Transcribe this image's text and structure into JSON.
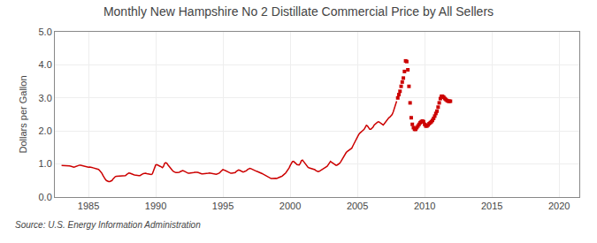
{
  "chart_data": {
    "type": "line",
    "title": "Monthly New Hampshire No 2 Distillate Commercial Price by All Sellers",
    "ylabel": "Dollars per Gallon",
    "annotations": [
      "Source: U.S. Energy Information Administration"
    ],
    "xlim": [
      1982.5,
      2021.5
    ],
    "ylim": [
      0.0,
      5.0
    ],
    "xticks": [
      1985,
      1990,
      1995,
      2000,
      2005,
      2010,
      2015,
      2020
    ],
    "yticks": [
      {
        "value": 0.0,
        "label": "0.0"
      },
      {
        "value": 1.0,
        "label": "1.0"
      },
      {
        "value": 2.0,
        "label": "2.0"
      },
      {
        "value": 3.0,
        "label": "3.0"
      },
      {
        "value": 4.0,
        "label": "4.0"
      },
      {
        "value": 5.0,
        "label": "5.0"
      }
    ],
    "grid": true,
    "series": [
      {
        "type": "line",
        "line_style": "solid",
        "color": "#cc0000",
        "x": [
          1983.0,
          1983.083,
          1983.167,
          1983.25,
          1983.333,
          1983.417,
          1983.5,
          1983.583,
          1983.667,
          1983.75,
          1983.833,
          1983.917,
          1984.0,
          1984.083,
          1984.167,
          1984.25,
          1984.333,
          1984.417,
          1984.5,
          1984.583,
          1984.667,
          1984.75,
          1984.833,
          1984.917,
          1985.0,
          1985.083,
          1985.167,
          1985.25,
          1985.333,
          1985.417,
          1985.5,
          1985.583,
          1985.667,
          1985.75,
          1985.833,
          1985.917,
          1986.0,
          1986.083,
          1986.167,
          1986.25,
          1986.333,
          1986.417,
          1986.5,
          1986.583,
          1986.667,
          1986.75,
          1986.833,
          1986.917,
          1987.0,
          1987.083,
          1987.167,
          1987.25,
          1987.333,
          1987.417,
          1987.5,
          1987.583,
          1987.667,
          1987.75,
          1987.833,
          1987.917,
          1988.0,
          1988.083,
          1988.167,
          1988.25,
          1988.333,
          1988.417,
          1988.5,
          1988.583,
          1988.667,
          1988.75,
          1988.833,
          1988.917,
          1989.0,
          1989.083,
          1989.167,
          1989.25,
          1989.333,
          1989.417,
          1989.5,
          1989.583,
          1989.667,
          1989.75,
          1989.833,
          1989.917,
          1990.0,
          1990.083,
          1990.167,
          1990.25,
          1990.333,
          1990.417,
          1990.5,
          1990.583,
          1990.667,
          1990.75,
          1990.833,
          1990.917,
          1991.0,
          1991.083,
          1991.167,
          1991.25,
          1991.333,
          1991.417,
          1991.5,
          1991.583,
          1991.667,
          1991.75,
          1991.833,
          1991.917,
          1992.0,
          1992.083,
          1992.167,
          1992.25,
          1992.333,
          1992.417,
          1992.5,
          1992.583,
          1992.667,
          1992.75,
          1992.833,
          1992.917,
          1993.0,
          1993.083,
          1993.167,
          1993.25,
          1993.333,
          1993.417,
          1993.5,
          1993.583,
          1993.667,
          1993.75,
          1993.833,
          1993.917,
          1994.0,
          1994.083,
          1994.167,
          1994.25,
          1994.333,
          1994.417,
          1994.5,
          1994.583,
          1994.667,
          1994.75,
          1994.833,
          1994.917,
          1995.0,
          1995.083,
          1995.167,
          1995.25,
          1995.333,
          1995.417,
          1995.5,
          1995.583,
          1995.667,
          1995.75,
          1995.833,
          1995.917,
          1996.0,
          1996.083,
          1996.167,
          1996.25,
          1996.333,
          1996.417,
          1996.5,
          1996.583,
          1996.667,
          1996.75,
          1996.833,
          1996.917,
          1997.0,
          1997.083,
          1997.167,
          1997.25,
          1997.333,
          1997.417,
          1997.5,
          1997.583,
          1997.667,
          1997.75,
          1997.833,
          1997.917,
          1998.0,
          1998.083,
          1998.167,
          1998.25,
          1998.333,
          1998.417,
          1998.5,
          1998.583,
          1998.667,
          1998.75,
          1998.833,
          1998.917,
          1999.0,
          1999.083,
          1999.167,
          1999.25,
          1999.333,
          1999.417,
          1999.5,
          1999.583,
          1999.667,
          1999.75,
          1999.833,
          1999.917,
          2000.0,
          2000.083,
          2000.167,
          2000.25,
          2000.333,
          2000.417,
          2000.5,
          2000.583,
          2000.667,
          2000.75,
          2000.833,
          2000.917,
          2001.0,
          2001.083,
          2001.167,
          2001.25,
          2001.333,
          2001.417,
          2001.5,
          2001.583,
          2001.667,
          2001.75,
          2001.833,
          2001.917,
          2002.0,
          2002.083,
          2002.167,
          2002.25,
          2002.333,
          2002.417,
          2002.5,
          2002.583,
          2002.667,
          2002.75,
          2002.833,
          2002.917,
          2003.0,
          2003.083,
          2003.167,
          2003.25,
          2003.333,
          2003.417,
          2003.5,
          2003.583,
          2003.667,
          2003.75,
          2003.833,
          2003.917,
          2004.0,
          2004.083,
          2004.167,
          2004.25,
          2004.333,
          2004.417,
          2004.5,
          2004.583,
          2004.667,
          2004.75,
          2004.833,
          2004.917,
          2005.0,
          2005.083,
          2005.167,
          2005.25,
          2005.333,
          2005.417,
          2005.5,
          2005.583,
          2005.667,
          2005.75,
          2005.833,
          2005.917,
          2006.0,
          2006.083,
          2006.167,
          2006.25,
          2006.333,
          2006.417,
          2006.5,
          2006.583,
          2006.667,
          2006.75,
          2006.833,
          2006.917,
          2007.0,
          2007.083,
          2007.167,
          2007.25,
          2007.333,
          2007.417,
          2007.5,
          2007.583,
          2007.667,
          2007.75,
          2007.833,
          2007.917
        ],
        "values": [
          0.955,
          0.955,
          0.955,
          0.955,
          0.96,
          0.955,
          0.95,
          0.945,
          0.935,
          0.92,
          0.91,
          0.905,
          0.915,
          0.93,
          0.945,
          0.955,
          0.965,
          0.96,
          0.95,
          0.945,
          0.935,
          0.92,
          0.91,
          0.9,
          0.905,
          0.91,
          0.91,
          0.895,
          0.885,
          0.875,
          0.865,
          0.855,
          0.845,
          0.835,
          0.8,
          0.76,
          0.72,
          0.65,
          0.58,
          0.54,
          0.5,
          0.48,
          0.47,
          0.47,
          0.48,
          0.5,
          0.55,
          0.6,
          0.62,
          0.63,
          0.63,
          0.63,
          0.63,
          0.63,
          0.63,
          0.63,
          0.64,
          0.65,
          0.68,
          0.72,
          0.73,
          0.72,
          0.7,
          0.69,
          0.68,
          0.67,
          0.66,
          0.65,
          0.65,
          0.65,
          0.65,
          0.66,
          0.69,
          0.71,
          0.72,
          0.72,
          0.71,
          0.7,
          0.69,
          0.68,
          0.68,
          0.7,
          0.78,
          0.88,
          0.97,
          0.98,
          0.97,
          0.95,
          0.93,
          0.91,
          0.89,
          0.93,
          1.02,
          1.04,
          1.02,
          0.97,
          0.92,
          0.87,
          0.83,
          0.8,
          0.77,
          0.75,
          0.74,
          0.74,
          0.74,
          0.75,
          0.77,
          0.79,
          0.8,
          0.79,
          0.77,
          0.74,
          0.73,
          0.72,
          0.72,
          0.72,
          0.72,
          0.73,
          0.74,
          0.75,
          0.76,
          0.75,
          0.74,
          0.72,
          0.71,
          0.7,
          0.7,
          0.7,
          0.7,
          0.7,
          0.71,
          0.72,
          0.73,
          0.72,
          0.71,
          0.7,
          0.69,
          0.69,
          0.69,
          0.7,
          0.71,
          0.73,
          0.77,
          0.81,
          0.83,
          0.82,
          0.8,
          0.78,
          0.76,
          0.74,
          0.73,
          0.72,
          0.72,
          0.72,
          0.73,
          0.74,
          0.78,
          0.81,
          0.82,
          0.81,
          0.79,
          0.77,
          0.76,
          0.77,
          0.78,
          0.8,
          0.83,
          0.85,
          0.87,
          0.86,
          0.84,
          0.82,
          0.8,
          0.79,
          0.78,
          0.77,
          0.76,
          0.75,
          0.73,
          0.71,
          0.69,
          0.67,
          0.65,
          0.63,
          0.61,
          0.59,
          0.57,
          0.56,
          0.56,
          0.57,
          0.58,
          0.57,
          0.56,
          0.57,
          0.58,
          0.6,
          0.62,
          0.64,
          0.66,
          0.7,
          0.73,
          0.77,
          0.82,
          0.88,
          0.95,
          1.02,
          1.07,
          1.08,
          1.06,
          1.02,
          0.98,
          0.97,
          0.97,
          1.02,
          1.1,
          1.12,
          1.07,
          1.02,
          0.97,
          0.93,
          0.9,
          0.88,
          0.87,
          0.86,
          0.85,
          0.85,
          0.83,
          0.8,
          0.78,
          0.77,
          0.78,
          0.8,
          0.82,
          0.84,
          0.85,
          0.87,
          0.9,
          0.93,
          0.98,
          1.02,
          1.08,
          1.05,
          1.03,
          1.0,
          0.98,
          0.96,
          0.97,
          0.99,
          1.02,
          1.06,
          1.12,
          1.18,
          1.25,
          1.3,
          1.35,
          1.38,
          1.4,
          1.42,
          1.44,
          1.48,
          1.55,
          1.62,
          1.7,
          1.77,
          1.83,
          1.88,
          1.93,
          1.97,
          2.0,
          2.02,
          2.05,
          2.1,
          2.17,
          2.15,
          2.1,
          2.05,
          2.05,
          2.08,
          2.12,
          2.18,
          2.22,
          2.25,
          2.27,
          2.28,
          2.25,
          2.22,
          2.2,
          2.18,
          2.22,
          2.27,
          2.33,
          2.38,
          2.4,
          2.42,
          2.45,
          2.5,
          2.58,
          2.68,
          2.8,
          2.9
        ]
      },
      {
        "type": "scatter",
        "marker": "square",
        "color": "#cc0000",
        "x": [
          2008.0,
          2008.083,
          2008.167,
          2008.25,
          2008.333,
          2008.417,
          2008.5,
          2008.583,
          2008.667,
          2008.75,
          2008.833,
          2008.917,
          2009.0,
          2009.083,
          2009.167,
          2009.25,
          2009.333,
          2009.417,
          2009.5,
          2009.583,
          2009.667,
          2009.75,
          2009.833,
          2009.917,
          2010.0,
          2010.083,
          2010.167,
          2010.25,
          2010.333,
          2010.417,
          2010.5,
          2010.583,
          2010.667,
          2010.75,
          2010.833,
          2010.917,
          2011.0,
          2011.083,
          2011.167,
          2011.25,
          2011.333,
          2011.417,
          2011.5,
          2011.583,
          2011.667,
          2011.75,
          2011.833,
          2011.917
        ],
        "values": [
          3.0,
          3.1,
          3.2,
          3.35,
          3.48,
          3.6,
          3.8,
          4.12,
          4.1,
          3.85,
          3.35,
          2.85,
          2.4,
          2.2,
          2.1,
          2.05,
          2.05,
          2.1,
          2.15,
          2.2,
          2.25,
          2.28,
          2.3,
          2.28,
          2.2,
          2.15,
          2.15,
          2.18,
          2.22,
          2.25,
          2.28,
          2.32,
          2.38,
          2.45,
          2.53,
          2.6,
          2.72,
          2.85,
          2.98,
          3.05,
          3.05,
          3.02,
          2.98,
          2.95,
          2.92,
          2.9,
          2.9,
          2.9
        ]
      }
    ]
  }
}
